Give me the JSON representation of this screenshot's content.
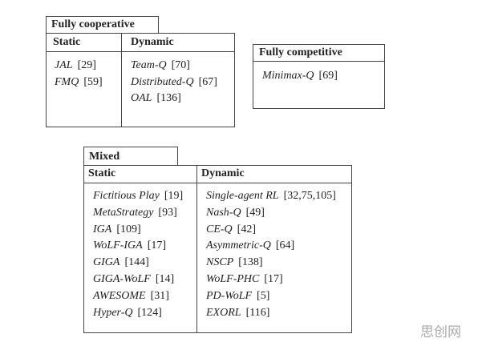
{
  "groups": [
    {
      "title": "Fully cooperative",
      "columns": [
        {
          "header": "Static",
          "items": [
            {
              "name": "JAL",
              "ref": "[29]"
            },
            {
              "name": "FMQ",
              "ref": "[59]"
            }
          ]
        },
        {
          "header": "Dynamic",
          "items": [
            {
              "name": "Team-Q",
              "ref": "[70]"
            },
            {
              "name": "Distributed-Q",
              "ref": "[67]"
            },
            {
              "name": "OAL",
              "ref": "[136]"
            }
          ]
        }
      ]
    },
    {
      "title": "Fully competitive",
      "items": [
        {
          "name": "Minimax-Q",
          "ref": "[69]"
        }
      ]
    },
    {
      "title": "Mixed",
      "columns": [
        {
          "header": "Static",
          "items": [
            {
              "name": "Fictitious Play",
              "ref": "[19]"
            },
            {
              "name": "MetaStrategy",
              "ref": "[93]"
            },
            {
              "name": "IGA",
              "ref": "[109]"
            },
            {
              "name": "WoLF-IGA",
              "ref": "[17]"
            },
            {
              "name": "GIGA",
              "ref": "[144]"
            },
            {
              "name": "GIGA-WoLF",
              "ref": "[14]"
            },
            {
              "name": "AWESOME",
              "ref": "[31]"
            },
            {
              "name": "Hyper-Q",
              "ref": "[124]"
            }
          ]
        },
        {
          "header": "Dynamic",
          "items": [
            {
              "name": "Single-agent RL",
              "ref": "[32,75,105]"
            },
            {
              "name": "Nash-Q",
              "ref": "[49]"
            },
            {
              "name": "CE-Q",
              "ref": "[42]"
            },
            {
              "name": "Asymmetric-Q",
              "ref": "[64]"
            },
            {
              "name": "NSCP",
              "ref": "[138]"
            },
            {
              "name": "WoLF-PHC",
              "ref": "[17]"
            },
            {
              "name": "PD-WoLF",
              "ref": "[5]"
            },
            {
              "name": "EXORL",
              "ref": "[116]"
            }
          ]
        }
      ]
    }
  ],
  "watermark": "思创网"
}
